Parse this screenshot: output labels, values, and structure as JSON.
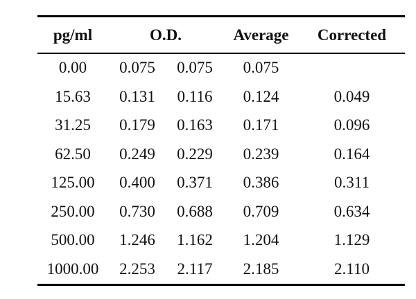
{
  "table": {
    "headers": {
      "pg_ml": "pg/ml",
      "od": "O.D.",
      "average": "Average",
      "corrected": "Corrected"
    },
    "rows": [
      {
        "pg_ml": "0.00",
        "od1": "0.075",
        "od2": "0.075",
        "average": "0.075",
        "corrected": ""
      },
      {
        "pg_ml": "15.63",
        "od1": "0.131",
        "od2": "0.116",
        "average": "0.124",
        "corrected": "0.049"
      },
      {
        "pg_ml": "31.25",
        "od1": "0.179",
        "od2": "0.163",
        "average": "0.171",
        "corrected": "0.096"
      },
      {
        "pg_ml": "62.50",
        "od1": "0.249",
        "od2": "0.229",
        "average": "0.239",
        "corrected": "0.164"
      },
      {
        "pg_ml": "125.00",
        "od1": "0.400",
        "od2": "0.371",
        "average": "0.386",
        "corrected": "0.311"
      },
      {
        "pg_ml": "250.00",
        "od1": "0.730",
        "od2": "0.688",
        "average": "0.709",
        "corrected": "0.634"
      },
      {
        "pg_ml": "500.00",
        "od1": "1.246",
        "od2": "1.162",
        "average": "1.204",
        "corrected": "1.129"
      },
      {
        "pg_ml": "1000.00",
        "od1": "2.253",
        "od2": "2.117",
        "average": "2.185",
        "corrected": "2.110"
      }
    ]
  }
}
